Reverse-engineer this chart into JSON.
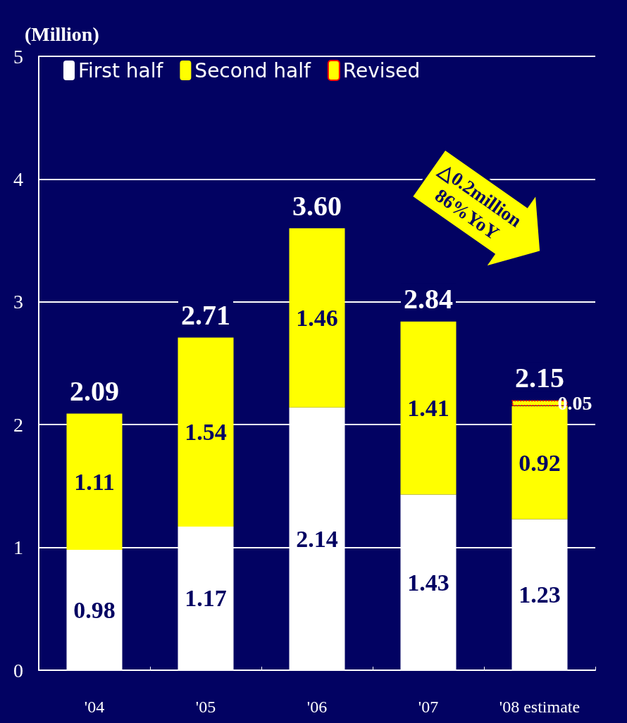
{
  "chart_data": {
    "type": "bar",
    "ylabel": "(Million)",
    "stacked": true,
    "categories": [
      "'04",
      "'05",
      "'06",
      "'07",
      "'08 estimate"
    ],
    "series": [
      {
        "name": "First half",
        "color": "#ffffff",
        "values": [
          0.98,
          1.17,
          2.14,
          1.43,
          1.23
        ]
      },
      {
        "name": "Second half",
        "color": "#ffff00",
        "values": [
          1.11,
          1.54,
          1.46,
          1.41,
          0.92
        ]
      },
      {
        "name": "Revised",
        "color": "#ffff00",
        "line_style": "dotted",
        "values": [
          null,
          null,
          null,
          null,
          0.05
        ]
      }
    ],
    "data_labels": true,
    "ylim": [
      0,
      5
    ],
    "yticks": [
      0,
      1,
      2,
      3,
      4,
      5
    ],
    "grid": "y",
    "legend": "top left",
    "annotations": [
      "△0.2million\n86%YoY",
      {
        "text": "2.09",
        "x": "'04",
        "y": 2.09
      },
      {
        "text": "2.71",
        "x": "'05",
        "y": 2.71
      },
      {
        "text": "3.60",
        "x": "'06",
        "y": 3.6
      },
      {
        "text": "2.84",
        "x": "'07",
        "y": 2.84
      },
      {
        "text": "2.15",
        "x": "'08 estimate",
        "y": 2.2
      }
    ]
  }
}
